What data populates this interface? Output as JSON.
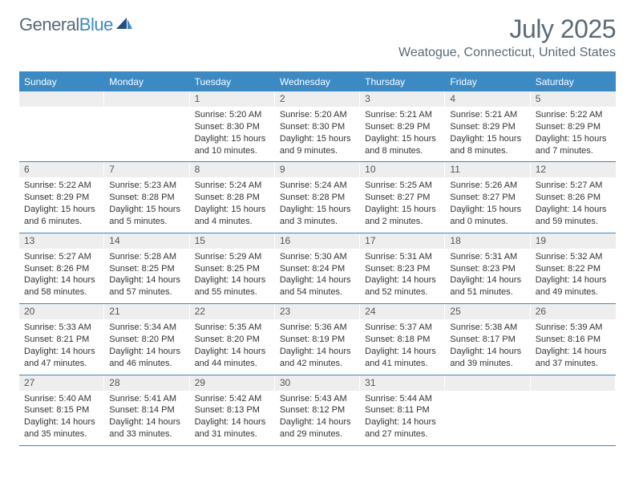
{
  "logo": {
    "general": "General",
    "blue": "Blue"
  },
  "title": "July 2025",
  "location": "Weatogue, Connecticut, United States",
  "colors": {
    "accent": "#3b8ac4",
    "header_text": "#5a6a76",
    "bg_shade": "#eeeeee",
    "text": "#333333"
  },
  "dow": [
    "Sunday",
    "Monday",
    "Tuesday",
    "Wednesday",
    "Thursday",
    "Friday",
    "Saturday"
  ],
  "layout": {
    "columns": 7,
    "rows": 5,
    "daynum_fontsize": 12,
    "body_fontsize": 11,
    "dow_fontsize": 12,
    "title_fontsize": 32,
    "location_fontsize": 16
  },
  "weeks": [
    [
      {
        "day": "",
        "empty": true
      },
      {
        "day": "",
        "empty": true
      },
      {
        "day": "1",
        "sunrise": "Sunrise: 5:20 AM",
        "sunset": "Sunset: 8:30 PM",
        "daylight": "Daylight: 15 hours and 10 minutes."
      },
      {
        "day": "2",
        "sunrise": "Sunrise: 5:20 AM",
        "sunset": "Sunset: 8:30 PM",
        "daylight": "Daylight: 15 hours and 9 minutes."
      },
      {
        "day": "3",
        "sunrise": "Sunrise: 5:21 AM",
        "sunset": "Sunset: 8:29 PM",
        "daylight": "Daylight: 15 hours and 8 minutes."
      },
      {
        "day": "4",
        "sunrise": "Sunrise: 5:21 AM",
        "sunset": "Sunset: 8:29 PM",
        "daylight": "Daylight: 15 hours and 8 minutes."
      },
      {
        "day": "5",
        "sunrise": "Sunrise: 5:22 AM",
        "sunset": "Sunset: 8:29 PM",
        "daylight": "Daylight: 15 hours and 7 minutes."
      }
    ],
    [
      {
        "day": "6",
        "sunrise": "Sunrise: 5:22 AM",
        "sunset": "Sunset: 8:29 PM",
        "daylight": "Daylight: 15 hours and 6 minutes."
      },
      {
        "day": "7",
        "sunrise": "Sunrise: 5:23 AM",
        "sunset": "Sunset: 8:28 PM",
        "daylight": "Daylight: 15 hours and 5 minutes."
      },
      {
        "day": "8",
        "sunrise": "Sunrise: 5:24 AM",
        "sunset": "Sunset: 8:28 PM",
        "daylight": "Daylight: 15 hours and 4 minutes."
      },
      {
        "day": "9",
        "sunrise": "Sunrise: 5:24 AM",
        "sunset": "Sunset: 8:28 PM",
        "daylight": "Daylight: 15 hours and 3 minutes."
      },
      {
        "day": "10",
        "sunrise": "Sunrise: 5:25 AM",
        "sunset": "Sunset: 8:27 PM",
        "daylight": "Daylight: 15 hours and 2 minutes."
      },
      {
        "day": "11",
        "sunrise": "Sunrise: 5:26 AM",
        "sunset": "Sunset: 8:27 PM",
        "daylight": "Daylight: 15 hours and 0 minutes."
      },
      {
        "day": "12",
        "sunrise": "Sunrise: 5:27 AM",
        "sunset": "Sunset: 8:26 PM",
        "daylight": "Daylight: 14 hours and 59 minutes."
      }
    ],
    [
      {
        "day": "13",
        "sunrise": "Sunrise: 5:27 AM",
        "sunset": "Sunset: 8:26 PM",
        "daylight": "Daylight: 14 hours and 58 minutes."
      },
      {
        "day": "14",
        "sunrise": "Sunrise: 5:28 AM",
        "sunset": "Sunset: 8:25 PM",
        "daylight": "Daylight: 14 hours and 57 minutes."
      },
      {
        "day": "15",
        "sunrise": "Sunrise: 5:29 AM",
        "sunset": "Sunset: 8:25 PM",
        "daylight": "Daylight: 14 hours and 55 minutes."
      },
      {
        "day": "16",
        "sunrise": "Sunrise: 5:30 AM",
        "sunset": "Sunset: 8:24 PM",
        "daylight": "Daylight: 14 hours and 54 minutes."
      },
      {
        "day": "17",
        "sunrise": "Sunrise: 5:31 AM",
        "sunset": "Sunset: 8:23 PM",
        "daylight": "Daylight: 14 hours and 52 minutes."
      },
      {
        "day": "18",
        "sunrise": "Sunrise: 5:31 AM",
        "sunset": "Sunset: 8:23 PM",
        "daylight": "Daylight: 14 hours and 51 minutes."
      },
      {
        "day": "19",
        "sunrise": "Sunrise: 5:32 AM",
        "sunset": "Sunset: 8:22 PM",
        "daylight": "Daylight: 14 hours and 49 minutes."
      }
    ],
    [
      {
        "day": "20",
        "sunrise": "Sunrise: 5:33 AM",
        "sunset": "Sunset: 8:21 PM",
        "daylight": "Daylight: 14 hours and 47 minutes."
      },
      {
        "day": "21",
        "sunrise": "Sunrise: 5:34 AM",
        "sunset": "Sunset: 8:20 PM",
        "daylight": "Daylight: 14 hours and 46 minutes."
      },
      {
        "day": "22",
        "sunrise": "Sunrise: 5:35 AM",
        "sunset": "Sunset: 8:20 PM",
        "daylight": "Daylight: 14 hours and 44 minutes."
      },
      {
        "day": "23",
        "sunrise": "Sunrise: 5:36 AM",
        "sunset": "Sunset: 8:19 PM",
        "daylight": "Daylight: 14 hours and 42 minutes."
      },
      {
        "day": "24",
        "sunrise": "Sunrise: 5:37 AM",
        "sunset": "Sunset: 8:18 PM",
        "daylight": "Daylight: 14 hours and 41 minutes."
      },
      {
        "day": "25",
        "sunrise": "Sunrise: 5:38 AM",
        "sunset": "Sunset: 8:17 PM",
        "daylight": "Daylight: 14 hours and 39 minutes."
      },
      {
        "day": "26",
        "sunrise": "Sunrise: 5:39 AM",
        "sunset": "Sunset: 8:16 PM",
        "daylight": "Daylight: 14 hours and 37 minutes."
      }
    ],
    [
      {
        "day": "27",
        "sunrise": "Sunrise: 5:40 AM",
        "sunset": "Sunset: 8:15 PM",
        "daylight": "Daylight: 14 hours and 35 minutes."
      },
      {
        "day": "28",
        "sunrise": "Sunrise: 5:41 AM",
        "sunset": "Sunset: 8:14 PM",
        "daylight": "Daylight: 14 hours and 33 minutes."
      },
      {
        "day": "29",
        "sunrise": "Sunrise: 5:42 AM",
        "sunset": "Sunset: 8:13 PM",
        "daylight": "Daylight: 14 hours and 31 minutes."
      },
      {
        "day": "30",
        "sunrise": "Sunrise: 5:43 AM",
        "sunset": "Sunset: 8:12 PM",
        "daylight": "Daylight: 14 hours and 29 minutes."
      },
      {
        "day": "31",
        "sunrise": "Sunrise: 5:44 AM",
        "sunset": "Sunset: 8:11 PM",
        "daylight": "Daylight: 14 hours and 27 minutes."
      },
      {
        "day": "",
        "empty": true
      },
      {
        "day": "",
        "empty": true
      }
    ]
  ]
}
